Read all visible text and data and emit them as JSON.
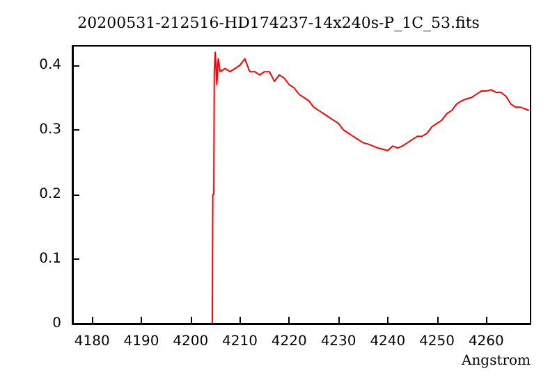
{
  "chart_data": {
    "type": "line",
    "title": "20200531-212516-HD174237-14x240s-P_1C_53.fits",
    "xlabel": "Angstrom",
    "x": [
      4204.4,
      4204.5,
      4204.7,
      4204.8,
      4205,
      4205.3,
      4205.6,
      4206,
      4207,
      4208,
      4209,
      4210,
      4211,
      4212,
      4213,
      4214,
      4215,
      4216,
      4217,
      4218,
      4219,
      4220,
      4221,
      4222,
      4223,
      4224,
      4225,
      4226,
      4227,
      4228,
      4229,
      4230,
      4231,
      4232,
      4233,
      4234,
      4235,
      4236,
      4237,
      4238,
      4239,
      4240,
      4241,
      4242,
      4243,
      4244,
      4245,
      4246,
      4247,
      4248,
      4249,
      4250,
      4251,
      4252,
      4253,
      4254,
      4255,
      4256,
      4257,
      4258,
      4259,
      4260,
      4261,
      4262,
      4263,
      4264,
      4265,
      4266,
      4267,
      4268.7
    ],
    "series": [
      {
        "color": "#ff0000",
        "values": [
          0,
          0.2,
          0.2,
          0.39,
          0.42,
          0.37,
          0.41,
          0.39,
          0.395,
          0.39,
          0.395,
          0.4,
          0.41,
          0.39,
          0.39,
          0.385,
          0.39,
          0.39,
          0.375,
          0.385,
          0.38,
          0.37,
          0.365,
          0.355,
          0.35,
          0.345,
          0.335,
          0.33,
          0.325,
          0.32,
          0.315,
          0.31,
          0.3,
          0.295,
          0.29,
          0.285,
          0.28,
          0.278,
          0.275,
          0.272,
          0.27,
          0.268,
          0.275,
          0.272,
          0.275,
          0.28,
          0.285,
          0.29,
          0.29,
          0.295,
          0.305,
          0.31,
          0.315,
          0.325,
          0.33,
          0.34,
          0.345,
          0.348,
          0.35,
          0.355,
          0.36,
          0.36,
          0.362,
          0.358,
          0.358,
          0.352,
          0.34,
          0.335,
          0.335,
          0.33
        ]
      }
    ],
    "xlim": [
      4176,
      4269
    ],
    "xticks": [
      4180,
      4190,
      4200,
      4210,
      4220,
      4230,
      4240,
      4250,
      4260
    ],
    "ylim": [
      0,
      0.43
    ],
    "yticks": [
      0,
      0.1,
      0.2,
      0.3,
      0.4
    ],
    "marker": "none",
    "line_style": "solid"
  }
}
